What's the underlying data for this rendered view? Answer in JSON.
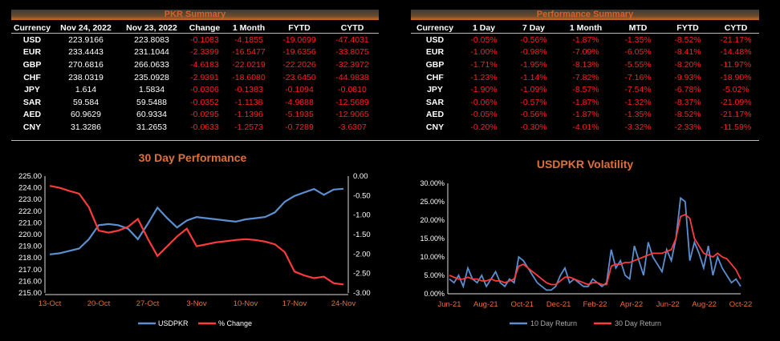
{
  "pkr_summary": {
    "title": "PKR Summary",
    "headers": [
      "Currency",
      "Nov 24, 2022",
      "Nov 23, 2022",
      "Change",
      "1 Month",
      "FYTD",
      "CYTD"
    ],
    "rows": [
      [
        "USD",
        "223.9166",
        "223.8083",
        "-0.1083",
        "-4.1855",
        "-19.0699",
        "-47.4031"
      ],
      [
        "EUR",
        "233.4443",
        "231.1044",
        "-2.3399",
        "-16.5477",
        "-19.6356",
        "-33.8075"
      ],
      [
        "GBP",
        "270.6816",
        "266.0633",
        "-4.6183",
        "-22.0219",
        "-22.2026",
        "-32.3972"
      ],
      [
        "CHF",
        "238.0319",
        "235.0928",
        "-2.9391",
        "-18.6080",
        "-23.6450",
        "-44.9838"
      ],
      [
        "JPY",
        "1.614",
        "1.5834",
        "-0.0306",
        "-0.1383",
        "-0.1094",
        "-0.0810"
      ],
      [
        "SAR",
        "59.584",
        "59.5488",
        "-0.0352",
        "-1.1138",
        "-4.9888",
        "-12.5689"
      ],
      [
        "AED",
        "60.9629",
        "60.9334",
        "-0.0295",
        "-1.1396",
        "-5.1935",
        "-12.9065"
      ],
      [
        "CNY",
        "31.3286",
        "31.2653",
        "-0.0633",
        "-1.2573",
        "-0.7289",
        "-3.6307"
      ]
    ]
  },
  "performance_summary": {
    "title": "Performance Summary",
    "headers": [
      "Currency",
      "1 Day",
      "7 Day",
      "1 Month",
      "MTD",
      "FYTD",
      "CYTD"
    ],
    "rows": [
      [
        "USD",
        "-0.05%",
        "-0.56%",
        "-1.87%",
        "-1.35%",
        "-8.52%",
        "-21.17%"
      ],
      [
        "EUR",
        "-1.00%",
        "-0.98%",
        "-7.09%",
        "-6.05%",
        "-8.41%",
        "-14.48%"
      ],
      [
        "GBP",
        "-1.71%",
        "-1.95%",
        "-8.13%",
        "-5.55%",
        "-8.20%",
        "-11.97%"
      ],
      [
        "CHF",
        "-1.23%",
        "-1.14%",
        "-7.82%",
        "-7.16%",
        "-9.93%",
        "-18.90%"
      ],
      [
        "JPY",
        "-1.90%",
        "-1.09%",
        "-8.57%",
        "-7.54%",
        "-6.78%",
        "-5.02%"
      ],
      [
        "SAR",
        "-0.06%",
        "-0.57%",
        "-1.87%",
        "-1.32%",
        "-8.37%",
        "-21.09%"
      ],
      [
        "AED",
        "-0.05%",
        "-0.56%",
        "-1.87%",
        "-1.35%",
        "-8.52%",
        "-21.17%"
      ],
      [
        "CNY",
        "-0.20%",
        "-0.30%",
        "-4.01%",
        "-3.32%",
        "-2.33%",
        "-11.59%"
      ]
    ]
  },
  "colors": {
    "accent": "#e0703a",
    "negative": "#ff2020",
    "blue": "#5b8fd0",
    "red": "#ff3b3b"
  },
  "chart_data": [
    {
      "type": "line",
      "title": "30 Day Performance",
      "x_ticks": [
        "13-Oct",
        "20-Oct",
        "27-Oct",
        "3-Nov",
        "10-Nov",
        "17-Nov",
        "24-Nov"
      ],
      "ylim_left": [
        215,
        225
      ],
      "yticks_left": [
        "225.00",
        "224.00",
        "223.00",
        "222.00",
        "221.00",
        "220.00",
        "219.00",
        "218.00",
        "217.00",
        "216.00",
        "215.00"
      ],
      "ylim_right": [
        -3,
        0
      ],
      "yticks_right": [
        "0.00",
        "-0.50",
        "-1.00",
        "-1.50",
        "-2.00",
        "-2.50",
        "-3.00"
      ],
      "series": [
        {
          "name": "USDPKR",
          "color": "#5b8fd0",
          "axis": "left",
          "values": [
            218.3,
            218.4,
            218.6,
            218.8,
            219.6,
            220.8,
            220.9,
            220.8,
            220.5,
            219.6,
            220.9,
            222.3,
            221.4,
            220.6,
            221.2,
            221.5,
            221.4,
            221.3,
            221.2,
            221.1,
            221.3,
            221.4,
            221.5,
            221.9,
            222.8,
            223.3,
            223.6,
            223.9,
            223.4,
            223.85,
            223.92
          ]
        },
        {
          "name": "% Change",
          "color": "#ff3b3b",
          "axis": "right",
          "values": [
            -0.25,
            -0.3,
            -0.38,
            -0.45,
            -0.8,
            -1.4,
            -1.45,
            -1.4,
            -1.3,
            -1.1,
            -1.6,
            -2.05,
            -1.8,
            -1.55,
            -1.35,
            -1.8,
            -1.75,
            -1.7,
            -1.67,
            -1.64,
            -1.62,
            -1.64,
            -1.68,
            -1.75,
            -1.95,
            -2.45,
            -2.55,
            -2.62,
            -2.58,
            -2.75,
            -2.78
          ]
        }
      ]
    },
    {
      "type": "line",
      "title": "USDPKR Volatility",
      "x_ticks": [
        "Jun-21",
        "Aug-21",
        "Oct-21",
        "Dec-21",
        "Feb-22",
        "Apr-22",
        "Jun-22",
        "Aug-22",
        "Oct-22"
      ],
      "ylim": [
        0,
        30
      ],
      "yticks": [
        "30.00%",
        "25.00%",
        "20.00%",
        "15.00%",
        "10.00%",
        "5.00%",
        "0.00%"
      ],
      "series": [
        {
          "name": "10 Day Return",
          "color": "#5b8fd0",
          "values": [
            4,
            3,
            5,
            2,
            7,
            4,
            3,
            5,
            2,
            4,
            6,
            3,
            2,
            4,
            3,
            10,
            9,
            7,
            5,
            3,
            2,
            1,
            1,
            2,
            5,
            7,
            3,
            4,
            3,
            2,
            2,
            4,
            3,
            2,
            3,
            12,
            7,
            9,
            5,
            4,
            13,
            9,
            5,
            14,
            10,
            8,
            6,
            12,
            9,
            15,
            26,
            25,
            9,
            14,
            11,
            7,
            13,
            5,
            10,
            7,
            5,
            3,
            4,
            2
          ]
        },
        {
          "name": "30 Day Return",
          "color": "#ff3b3b",
          "values": [
            5,
            4.5,
            4,
            4,
            4.5,
            4,
            4,
            3.5,
            3.5,
            4,
            3.5,
            3.5,
            3,
            3.5,
            4,
            7.5,
            8,
            7,
            6,
            5,
            4,
            3,
            2.5,
            2.5,
            3.5,
            4.5,
            4.5,
            4,
            3.5,
            3,
            2.5,
            3,
            3,
            2.5,
            2.5,
            7.5,
            8,
            8,
            8.5,
            8.5,
            9,
            9.5,
            10,
            10.5,
            11,
            11,
            11,
            11.5,
            12,
            15,
            21,
            21.5,
            20.5,
            15,
            13,
            11,
            10.5,
            10,
            11,
            10,
            9.5,
            8,
            6.5,
            4
          ]
        }
      ]
    }
  ]
}
